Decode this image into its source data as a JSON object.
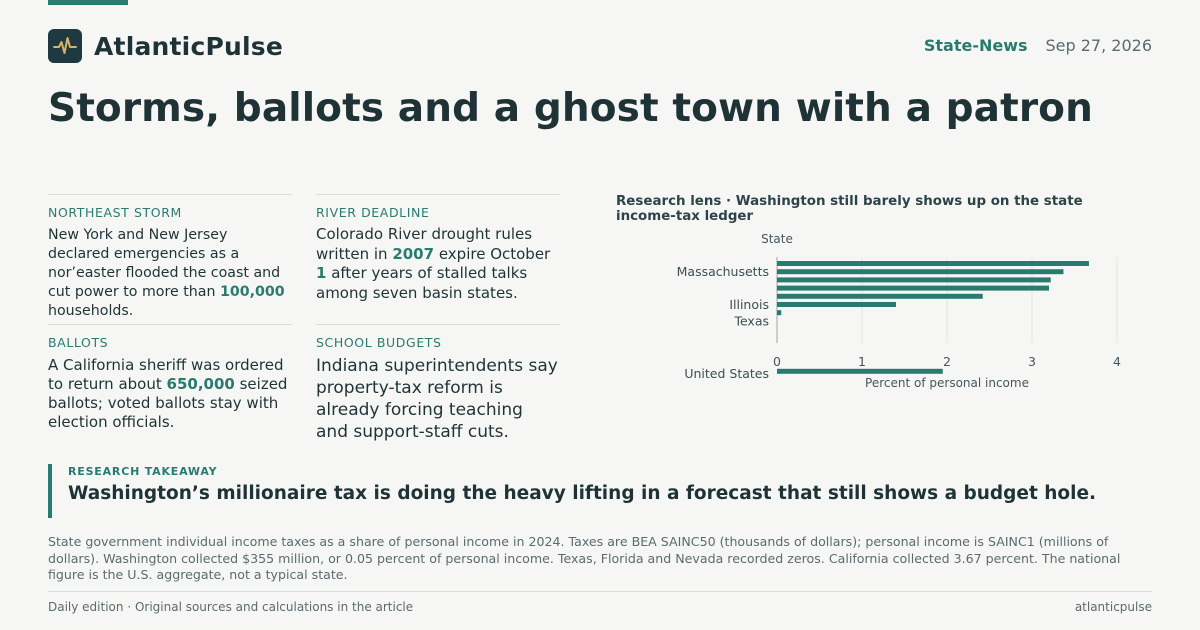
{
  "brand": {
    "name": "AtlanticPulse",
    "logo_icon": "pulse-icon",
    "accent": "#2a7b6f",
    "logo_bg": "#1e3a40",
    "logo_stroke": "#d6b26a"
  },
  "header": {
    "section": "State-News",
    "date": "Sep 27, 2026"
  },
  "headline": "Storms, ballots and a ghost town with a patron",
  "briefs": [
    {
      "kicker": "NORTHEAST STORM",
      "parts": [
        "New York and New Jersey declared emergencies as a nor’easter flooded the coast and cut power to more than ",
        "100,000",
        " households."
      ]
    },
    {
      "kicker": "RIVER DEADLINE",
      "parts": [
        "Colorado River drought rules written in ",
        "2007",
        " expire October ",
        "1",
        " after years of stalled talks among seven basin states."
      ]
    },
    {
      "kicker": "BALLOTS",
      "parts": [
        "A California sheriff was ordered to return about ",
        "650,000",
        " seized ballots; voted ballots stay with election officials."
      ]
    },
    {
      "kicker": "SCHOOL BUDGETS",
      "parts": [
        "Indiana superintendents say property-tax reform is already forcing teaching and support-staff cuts."
      ]
    }
  ],
  "chart_data": {
    "type": "bar",
    "orientation": "horizontal",
    "title": "Research lens · Washington still barely shows up on the state income-tax ledger",
    "ylabel": "State",
    "xlabel": "Percent of personal income",
    "xlim": [
      0,
      4
    ],
    "xticks": [
      "0",
      "1",
      "2",
      "3",
      "4"
    ],
    "labeled_categories": [
      "Massachusetts",
      "Illinois",
      "Texas",
      "United States"
    ],
    "values": [
      3.67,
      3.37,
      3.22,
      3.2,
      2.42,
      1.4,
      0.05,
      0.0,
      0.0,
      1.95
    ],
    "bar_color": "#2a7b6f",
    "grid": "vertical"
  },
  "takeaway": {
    "label": "RESEARCH TAKEAWAY",
    "text": "Washington’s millionaire tax is doing the heavy lifting in a forecast that still shows a budget hole."
  },
  "note": "State government individual income taxes as a share of personal income in 2024. Taxes are BEA SAINC50 (thousands of dollars); personal income is SAINC1 (millions of dollars). Washington collected $355 million, or 0.05 percent of personal income. Texas, Florida and Nevada recorded zeros. California collected 3.67 percent. The national figure is the U.S. aggregate, not a typical state.",
  "footer": {
    "left": "Daily edition · Original sources and calculations in the article",
    "right": "atlanticpulse"
  }
}
